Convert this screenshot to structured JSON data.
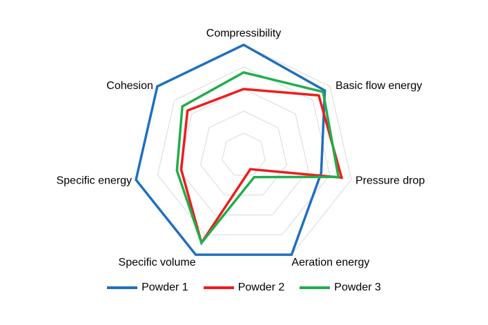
{
  "chart_data": {
    "type": "radar",
    "title": "",
    "axes": [
      "Compressibility",
      "Basic flow energy",
      "Pressure drop",
      "Aeration energy",
      "Specific volume",
      "Specific energy",
      "Cohesion"
    ],
    "rlim": [
      0,
      1
    ],
    "grid_levels": [
      0.2,
      0.4,
      0.6,
      0.8,
      1.0
    ],
    "grid": true,
    "legend_position": "bottom",
    "series": [
      {
        "name": "Powder 1",
        "color": "#1f6fbf",
        "values": [
          1.0,
          0.94,
          0.72,
          1.0,
          1.0,
          1.0,
          1.0
        ]
      },
      {
        "name": "Powder 2",
        "color": "#ee1c1c",
        "values": [
          0.6,
          0.87,
          0.91,
          0.14,
          0.88,
          0.58,
          0.65
        ]
      },
      {
        "name": "Powder 3",
        "color": "#1fae4b",
        "values": [
          0.75,
          0.92,
          0.88,
          0.22,
          0.88,
          0.62,
          0.71
        ]
      }
    ]
  }
}
